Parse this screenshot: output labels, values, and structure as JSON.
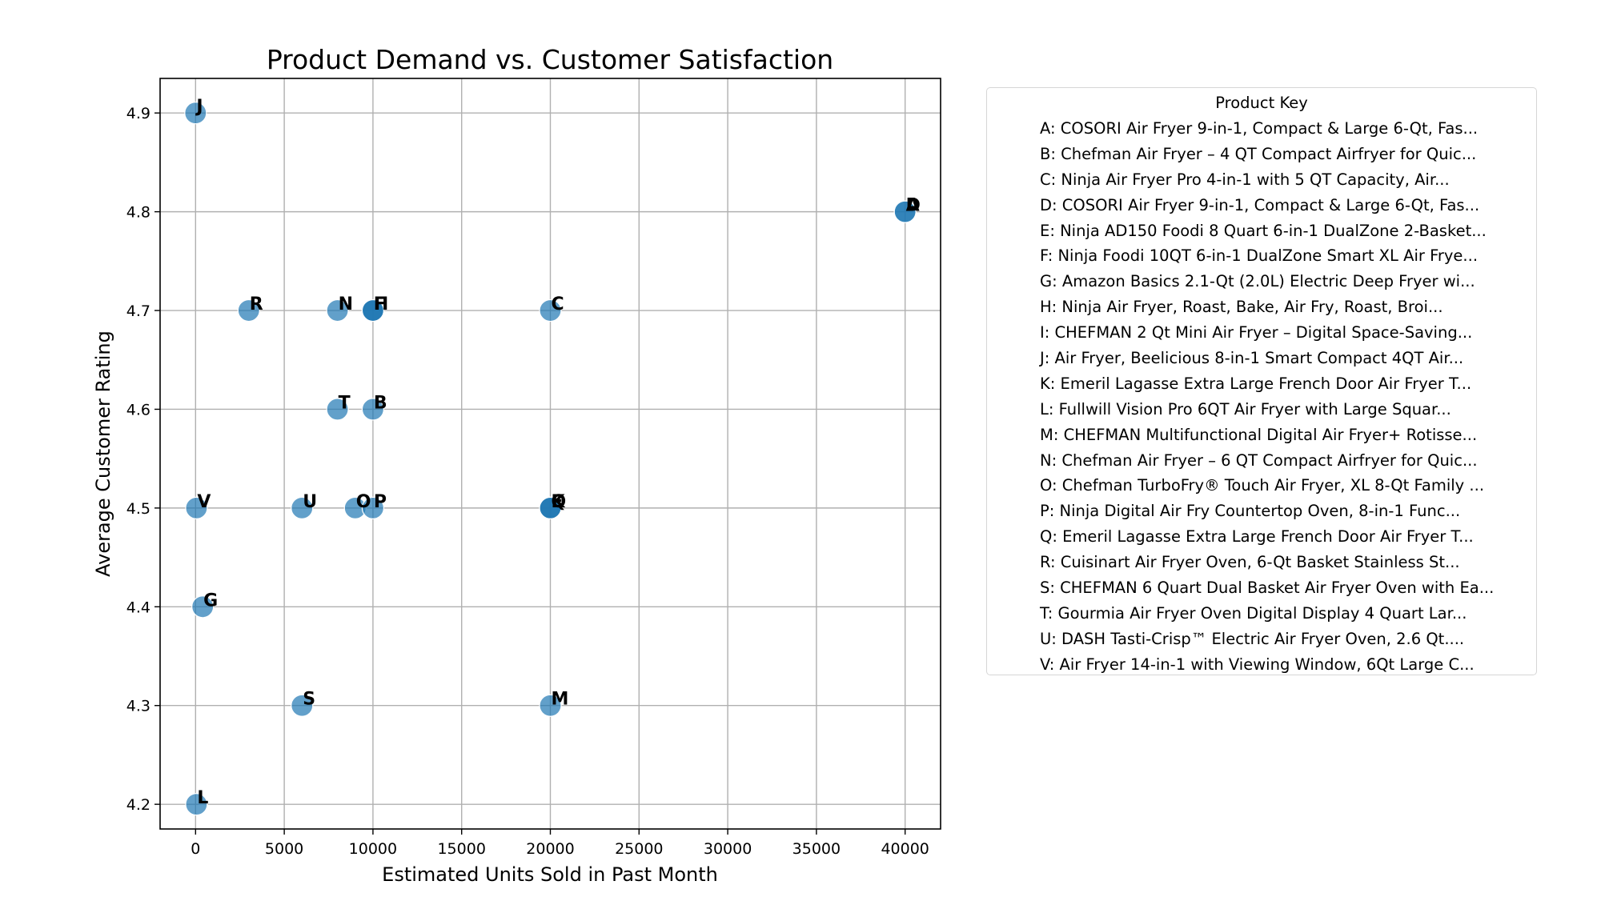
{
  "chart_data": {
    "type": "scatter",
    "title": "Product Demand vs. Customer Satisfaction",
    "xlabel": "Estimated Units Sold in Past Month",
    "ylabel": "Average Customer Rating",
    "xlim": [
      -2000,
      42000
    ],
    "ylim": [
      4.175,
      4.935
    ],
    "xticks": [
      0,
      5000,
      10000,
      15000,
      20000,
      25000,
      30000,
      35000,
      40000
    ],
    "yticks": [
      4.2,
      4.3,
      4.4,
      4.5,
      4.6,
      4.7,
      4.8,
      4.9
    ],
    "xtick_labels": [
      "0",
      "5000",
      "10000",
      "15000",
      "20000",
      "25000",
      "30000",
      "35000",
      "40000"
    ],
    "ytick_labels": [
      "4.2",
      "4.3",
      "4.4",
      "4.5",
      "4.6",
      "4.7",
      "4.8",
      "4.9"
    ],
    "grid": true,
    "marker_color": "#1f77b4",
    "points": [
      {
        "label": "A",
        "x": 40000,
        "y": 4.8
      },
      {
        "label": "B",
        "x": 10000,
        "y": 4.6
      },
      {
        "label": "C",
        "x": 20000,
        "y": 4.7
      },
      {
        "label": "D",
        "x": 40000,
        "y": 4.8
      },
      {
        "label": "E",
        "x": 20000,
        "y": 4.5
      },
      {
        "label": "F",
        "x": 10000,
        "y": 4.7
      },
      {
        "label": "G",
        "x": 400,
        "y": 4.4
      },
      {
        "label": "H",
        "x": 10000,
        "y": 4.7
      },
      {
        "label": "I",
        "x": 10000,
        "y": 4.7
      },
      {
        "label": "J",
        "x": 0,
        "y": 4.9
      },
      {
        "label": "K",
        "x": 20000,
        "y": 4.5
      },
      {
        "label": "L",
        "x": 50,
        "y": 4.2
      },
      {
        "label": "M",
        "x": 20000,
        "y": 4.3
      },
      {
        "label": "N",
        "x": 8000,
        "y": 4.7
      },
      {
        "label": "O",
        "x": 9000,
        "y": 4.5
      },
      {
        "label": "P",
        "x": 10000,
        "y": 4.5
      },
      {
        "label": "Q",
        "x": 20000,
        "y": 4.5
      },
      {
        "label": "R",
        "x": 3000,
        "y": 4.7
      },
      {
        "label": "S",
        "x": 6000,
        "y": 4.3
      },
      {
        "label": "T",
        "x": 8000,
        "y": 4.6
      },
      {
        "label": "U",
        "x": 6000,
        "y": 4.5
      },
      {
        "label": "V",
        "x": 50,
        "y": 4.5
      }
    ],
    "legend": {
      "title": "Product Key",
      "placement": "right, outside plot",
      "entries": [
        "A: COSORI Air Fryer 9-in-1, Compact & Large 6-Qt, Fas...",
        "B: Chefman Air Fryer – 4 QT Compact Airfryer for Quic...",
        "C: Ninja Air Fryer Pro 4-in-1 with 5 QT Capacity, Air...",
        "D: COSORI Air Fryer 9-in-1, Compact & Large 6-Qt, Fas...",
        "E: Ninja AD150 Foodi 8 Quart 6-in-1 DualZone 2-Basket...",
        "F: Ninja Foodi 10QT 6-in-1 DualZone Smart XL Air Frye...",
        "G: Amazon Basics 2.1-Qt (2.0L) Electric Deep Fryer wi...",
        "H: Ninja Air Fryer, Roast, Bake, Air Fry, Roast, Broi...",
        "I: CHEFMAN 2 Qt Mini Air Fryer – Digital Space-Saving...",
        "J: Air Fryer, Beelicious 8-in-1 Smart Compact 4QT Air...",
        "K: Emeril Lagasse Extra Large French Door Air Fryer T...",
        "L: Fullwill Vision Pro 6QT Air Fryer with Large Squar...",
        "M: CHEFMAN Multifunctional Digital Air Fryer+ Rotisse...",
        "N: Chefman Air Fryer – 6 QT Compact Airfryer for Quic...",
        "O: Chefman TurboFry® Touch Air Fryer, XL 8-Qt Family ...",
        "P: Ninja Digital Air Fry Countertop Oven, 8-in-1 Func...",
        "Q: Emeril Lagasse Extra Large French Door Air Fryer T...",
        "R: Cuisinart Air Fryer Oven, 6-Qt Basket Stainless St...",
        "S: CHEFMAN 6 Quart Dual Basket Air Fryer Oven with Ea...",
        "T: Gourmia Air Fryer Oven Digital Display 4 Quart Lar...",
        "U: DASH Tasti-Crisp™ Electric Air Fryer Oven, 2.6 Qt....",
        "V: Air Fryer 14-in-1 with Viewing Window, 6Qt Large C..."
      ]
    }
  }
}
